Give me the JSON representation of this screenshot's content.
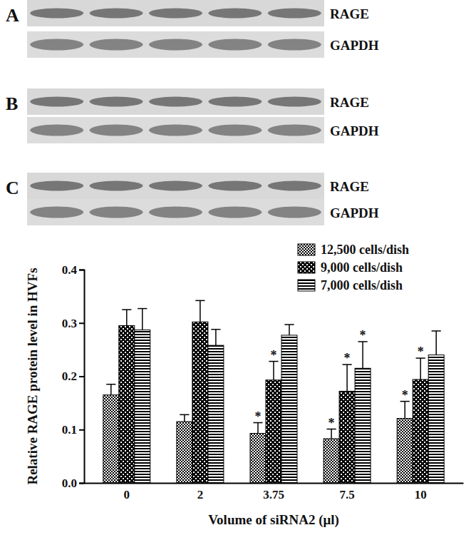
{
  "panels": [
    {
      "label": "A",
      "rows": [
        "RAGE",
        "GAPDH"
      ]
    },
    {
      "label": "B",
      "rows": [
        "RAGE",
        "GAPDH"
      ]
    },
    {
      "label": "C",
      "rows": [
        "RAGE",
        "GAPDH"
      ]
    }
  ],
  "chart_data": {
    "type": "bar",
    "x_label": "Volume of siRNA2 (μl)",
    "y_label": "Relative RAGE protein level in HVFs",
    "categories": [
      "0",
      "2",
      "3.75",
      "7.5",
      "10"
    ],
    "ylim": [
      0,
      0.4
    ],
    "yticks": [
      {
        "value": 0,
        "label": "0.0"
      },
      0.1,
      0.2,
      0.3,
      0.4
    ],
    "legend": "top-right",
    "series": [
      {
        "name": "12,500 cells/dish",
        "color": "#000000",
        "values": [
          0.165,
          0.115,
          0.093,
          0.083,
          0.121
        ],
        "errors": [
          0.02,
          0.013,
          0.02,
          0.018,
          0.032
        ],
        "significance": [
          null,
          null,
          "*",
          "*",
          "*"
        ]
      },
      {
        "name": "9,000 cells/dish",
        "color": "#000000",
        "values": [
          0.295,
          0.302,
          0.193,
          0.172,
          0.194
        ],
        "errors": [
          0.03,
          0.04,
          0.035,
          0.05,
          0.04
        ],
        "significance": [
          null,
          null,
          "*",
          "*",
          "*"
        ]
      },
      {
        "name": "7,000 cells/dish",
        "color": "#000000",
        "values": [
          0.287,
          0.258,
          0.277,
          0.215,
          0.24
        ],
        "errors": [
          0.04,
          0.03,
          0.02,
          0.05,
          0.045
        ],
        "significance": [
          null,
          null,
          null,
          "*",
          null
        ]
      }
    ]
  }
}
